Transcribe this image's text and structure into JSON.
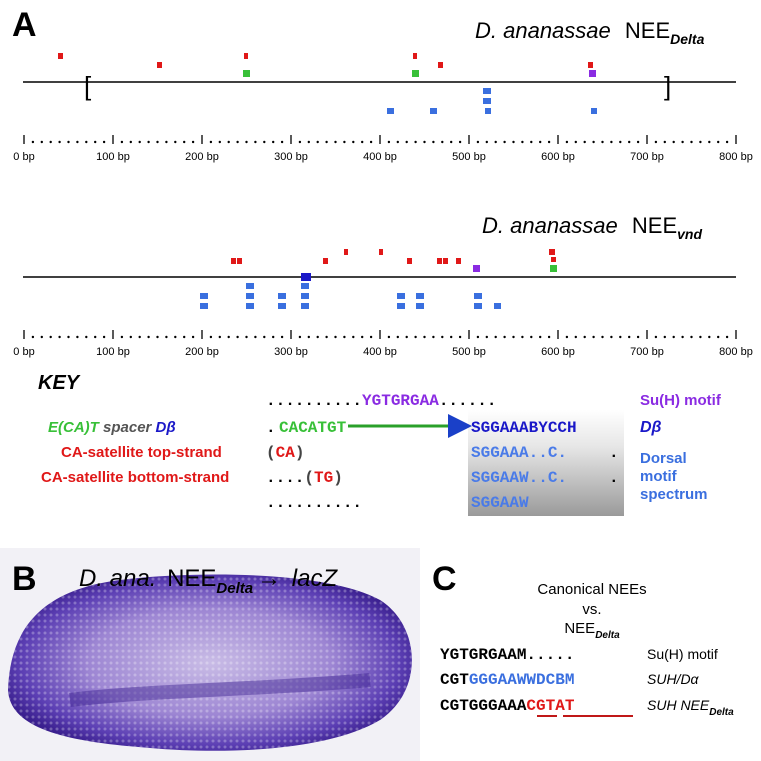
{
  "colors": {
    "red": "#e01818",
    "green": "#38c038",
    "purple": "#8a2be2",
    "blue": "#3a6fdf",
    "darkblue": "#1a18c8",
    "lightblue": "#4a7be8",
    "black": "#000000"
  },
  "panel_a": {
    "label": "A",
    "track1": {
      "species": "D. ananassae",
      "nee": "NEE",
      "subscript": "Delta",
      "bracket_open": "[",
      "bracket_close": "]"
    },
    "track2": {
      "species": "D. ananassae",
      "nee": "NEE",
      "subscript": "vnd"
    },
    "axis_labels": [
      "0 bp",
      "100 bp",
      "200 bp",
      "300 bp",
      "400 bp",
      "500 bp",
      "600 bp",
      "700 bp",
      "800 bp"
    ],
    "axis_range_bp": [
      0,
      800
    ]
  },
  "key": {
    "title": "KEY",
    "row1": {
      "dots_before": "..........",
      "seq": "YGTGRGAA",
      "dots_after": "......",
      "label": "Su(H) motif"
    },
    "row2": {
      "left_label_green": "E(CA)T",
      "left_label_grey": "spacer",
      "left_label_blue": "Dβ",
      "seq_green": "CACATGT",
      "seq_blue": "SGGAAABYCCH",
      "right_label": "Dβ"
    },
    "row3": {
      "left_label": "CA-satellite top-strand",
      "paren_open": "(",
      "ca": "CA",
      "paren_close": ")",
      "seq": "SGGAAA..C.",
      "tail": "."
    },
    "row4": {
      "left_label": "CA-satellite bottom-strand",
      "dots": "....",
      "paren_open": "(",
      "tg": "TG",
      "paren_close": ")",
      "seq": "SGGAAW..C.",
      "tail": "."
    },
    "row5": {
      "dots": "..........",
      "seq": "SGGAAW"
    },
    "dorsal_label": [
      "Dorsal",
      "motif",
      "spectrum"
    ]
  },
  "panel_b": {
    "label": "B",
    "title_species": "D. ana.",
    "title_nee": "NEE",
    "title_subscript": "Delta",
    "arrow": "→",
    "reporter": "lacZ"
  },
  "panel_c": {
    "label": "C",
    "header_line1": "Canonical NEEs",
    "header_line2": "vs.",
    "header_line3": "NEE",
    "header_sub": "Delta",
    "rows": [
      {
        "black": "YGTGRGAAM",
        "dots": ".....",
        "label": "Su(H) motif"
      },
      {
        "black": "CGT",
        "blue": "GGGAAWWDCBM",
        "label": "SUH/Dα"
      },
      {
        "black": "CGTGGGAAA",
        "red1": "CG",
        "red2": "TAT",
        "label": "SUH NEE",
        "label_sub": "Delta"
      }
    ]
  }
}
